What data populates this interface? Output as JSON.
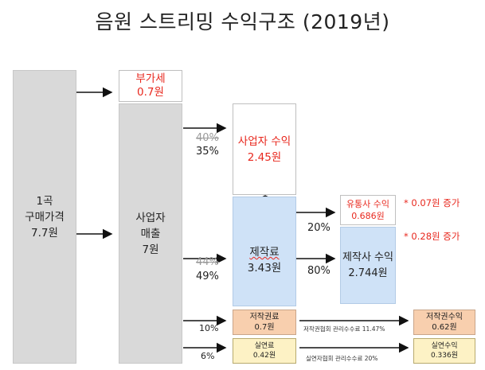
{
  "title": "음원 스트리밍 수익구조 (2019년)",
  "boxes": {
    "purchase": {
      "line1": "1곡",
      "line2": "구매가격",
      "line3": "7.7원"
    },
    "vat": {
      "line1": "부가세",
      "line2": "0.7원"
    },
    "operator_sales": {
      "line1": "사업자",
      "line2": "매출",
      "line3": "7원"
    },
    "operator_revenue": {
      "line1": "사업자 수익",
      "line2": "2.45원"
    },
    "production_fee": {
      "line1": "제작료",
      "line2": "3.43원"
    },
    "distributor_revenue": {
      "line1": "유통사 수익",
      "line2": "0.686원"
    },
    "producer_revenue": {
      "line1": "제작사 수익",
      "line2": "2.744원"
    },
    "copyright_fee": {
      "line1": "저작권료",
      "line2": "0.7원"
    },
    "copyright_revenue": {
      "line1": "저작권수익",
      "line2": "0.62원"
    },
    "performance_fee": {
      "line1": "실연료",
      "line2": "0.42원"
    },
    "performance_revenue": {
      "line1": "실연수익",
      "line2": "0.336원"
    }
  },
  "percentages": {
    "operator_old": "40%",
    "operator_new": "35%",
    "production_old": "44%",
    "production_new": "49%",
    "distributor": "20%",
    "producer": "80%",
    "copyright": "10%",
    "performance": "6%"
  },
  "notes": {
    "distributor_increase": "* 0.07원 증가",
    "producer_increase": "* 0.28원 증가",
    "copyright_fee_note": "저작권협회 관리수수료 11.47%",
    "performance_fee_note": "실연자협회 관리수수료 20%"
  }
}
